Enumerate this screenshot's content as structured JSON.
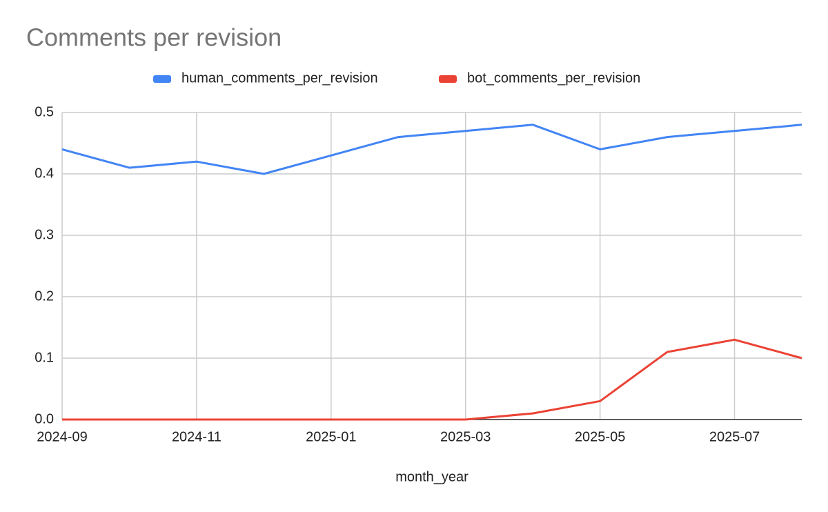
{
  "chart_data": {
    "type": "line",
    "title": "Comments per revision",
    "x_label": "month_year",
    "categories": [
      "2024-09",
      null,
      "2024-11",
      null,
      "2025-01",
      null,
      "2025-03",
      null,
      "2025-05",
      null,
      "2025-07",
      null
    ],
    "series": [
      {
        "name": "human_comments_per_revision",
        "color": "#4285f4",
        "values": [
          0.44,
          0.41,
          0.42,
          0.4,
          0.43,
          0.46,
          0.47,
          0.48,
          0.44,
          0.46,
          0.47,
          0.48
        ]
      },
      {
        "name": "bot_comments_per_revision",
        "color": "#ea4335",
        "values": [
          0,
          0,
          0,
          0,
          0,
          0,
          0,
          0.01,
          0.03,
          0.11,
          0.13,
          0.1
        ]
      }
    ],
    "ylim": [
      0,
      0.5
    ],
    "yticks": [
      {
        "value": 0,
        "label": "0.0"
      },
      0.1,
      0.2,
      0.3,
      0.4,
      0.5
    ],
    "grid": true,
    "legend": "top"
  }
}
